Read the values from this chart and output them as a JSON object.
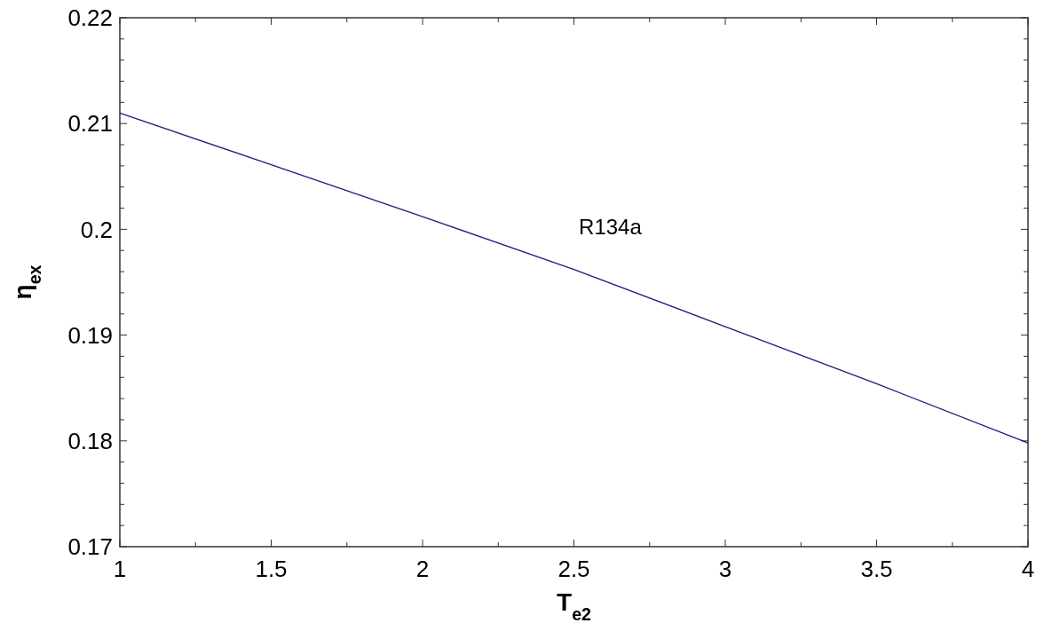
{
  "chart_data": {
    "type": "line",
    "xlabel": "T$_{e2}$",
    "ylabel": "η$_{ex}$",
    "x": [
      1,
      1.5,
      2,
      2.5,
      3,
      3.5,
      4
    ],
    "series": [
      {
        "color": "#1c1c7a",
        "values": [
          0.211,
          0.2061,
          0.2012,
          0.1962,
          0.1908,
          0.1854,
          0.1798
        ]
      }
    ],
    "annotations": [
      "R134a"
    ],
    "xlim": [
      1,
      4
    ],
    "xticks": [
      1,
      {
        "value": 1.25,
        "label": null
      },
      1.5,
      {
        "value": 1.75,
        "label": null
      },
      2,
      {
        "value": 2.25,
        "label": null
      },
      2.5,
      {
        "value": 2.75,
        "label": null
      },
      3,
      {
        "value": 3.25,
        "label": null
      },
      3.5,
      {
        "value": 3.75,
        "label": null
      },
      4
    ],
    "ylim": [
      0.17,
      0.22
    ],
    "yticks": [
      0.17,
      {
        "value": 0.172,
        "label": null
      },
      {
        "value": 0.174,
        "label": null
      },
      {
        "value": 0.176,
        "label": null
      },
      {
        "value": 0.178,
        "label": null
      },
      0.18,
      {
        "value": 0.182,
        "label": null
      },
      {
        "value": 0.184,
        "label": null
      },
      {
        "value": 0.186,
        "label": null
      },
      {
        "value": 0.188,
        "label": null
      },
      0.19,
      {
        "value": 0.192,
        "label": null
      },
      {
        "value": 0.194,
        "label": null
      },
      {
        "value": 0.196,
        "label": null
      },
      {
        "value": 0.198,
        "label": null
      },
      0.2,
      {
        "value": 0.202,
        "label": null
      },
      {
        "value": 0.204,
        "label": null
      },
      {
        "value": 0.206,
        "label": null
      },
      {
        "value": 0.208,
        "label": null
      },
      0.21,
      {
        "value": 0.212,
        "label": null
      },
      {
        "value": 0.214,
        "label": null
      },
      {
        "value": 0.216,
        "label": null
      },
      {
        "value": 0.218,
        "label": null
      },
      0.22
    ],
    "grid": false,
    "marker": "none",
    "line_style": "solid"
  }
}
